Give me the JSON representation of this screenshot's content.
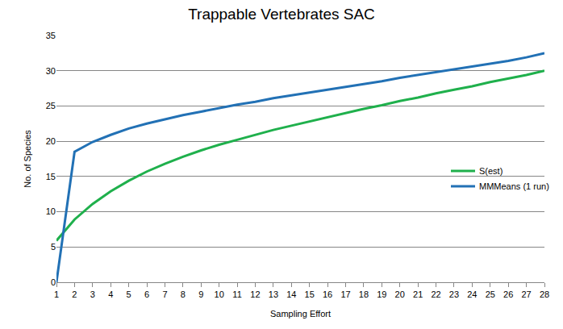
{
  "chart_data": {
    "type": "line",
    "title": "Trappable Vertebrates SAC",
    "x_label": "Sampling Effort",
    "y_label": "No. of Species",
    "categories": [
      "1",
      "2",
      "3",
      "4",
      "5",
      "6",
      "7",
      "8",
      "9",
      "10",
      "11",
      "12",
      "13",
      "14",
      "15",
      "16",
      "17",
      "18",
      "19",
      "20",
      "21",
      "22",
      "23",
      "24",
      "25",
      "26",
      "27",
      "28"
    ],
    "series": [
      {
        "name": "S(est)",
        "color": "#1fb04c",
        "values": [
          5.9,
          8.9,
          11.1,
          12.9,
          14.4,
          15.7,
          16.8,
          17.8,
          18.7,
          19.5,
          20.2,
          20.9,
          21.6,
          22.2,
          22.8,
          23.4,
          24.0,
          24.6,
          25.1,
          25.7,
          26.2,
          26.8,
          27.3,
          27.8,
          28.4,
          28.9,
          29.4,
          30.0
        ]
      },
      {
        "name": "MMMeans (1 run)",
        "color": "#2271b5",
        "values": [
          0,
          18.5,
          19.9,
          20.9,
          21.8,
          22.5,
          23.1,
          23.7,
          24.2,
          24.7,
          25.2,
          25.6,
          26.1,
          26.5,
          26.9,
          27.3,
          27.7,
          28.1,
          28.5,
          29.0,
          29.4,
          29.8,
          30.2,
          30.6,
          31.0,
          31.4,
          31.9,
          32.5
        ]
      }
    ],
    "ylim": [
      0,
      35
    ],
    "yticks": [
      0,
      5,
      10,
      15,
      20,
      25,
      30,
      35
    ],
    "grid": true,
    "legend": "right"
  }
}
